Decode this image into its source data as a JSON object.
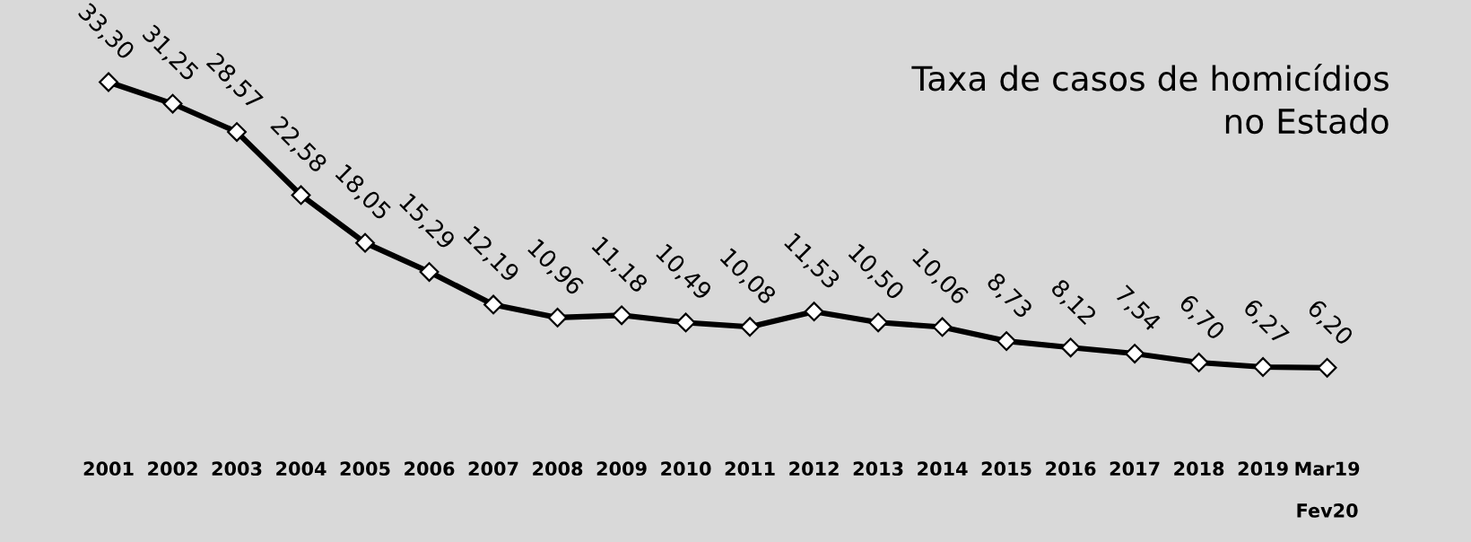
{
  "chart_data": {
    "type": "line",
    "title": "Taxa de casos de homicídios\nno Estado",
    "categories": [
      "2001",
      "2002",
      "2003",
      "2004",
      "2005",
      "2006",
      "2007",
      "2008",
      "2009",
      "2010",
      "2011",
      "2012",
      "2013",
      "2014",
      "2015",
      "2016",
      "2017",
      "2018",
      "2019",
      "Mar19\n\nFev20"
    ],
    "series": [
      {
        "color": "#000000",
        "values": [
          33.3,
          31.25,
          28.57,
          22.58,
          18.05,
          15.29,
          12.19,
          10.96,
          11.18,
          10.49,
          10.08,
          11.53,
          10.5,
          10.06,
          8.73,
          8.12,
          7.54,
          6.7,
          6.27,
          6.2
        ],
        "value_labels": [
          "33,30",
          "31,25",
          "28,57",
          "22,58",
          "18,05",
          "15,29",
          "12,19",
          "10,96",
          "11,18",
          "10,49",
          "10,08",
          "11,53",
          "10,50",
          "10,06",
          "8,73",
          "8,12",
          "7,54",
          "6,70",
          "6,27",
          "6,20"
        ]
      }
    ],
    "tick_labels": "x",
    "marker": "diamond",
    "line_style": "solid",
    "grid": false,
    "legend": false
  }
}
